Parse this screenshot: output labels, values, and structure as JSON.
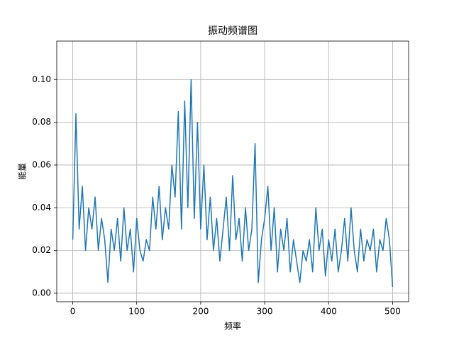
{
  "chart_data": {
    "type": "line",
    "title": "振动频谱图",
    "x_label": "频率",
    "y_label": "能量",
    "color": "#1f77b4",
    "grid": true,
    "xlim": [
      -25,
      525
    ],
    "xticks": [
      0,
      100,
      200,
      300,
      400,
      500
    ],
    "ylim": [
      -0.004,
      0.118
    ],
    "yticks": [
      {
        "value": 0,
        "label": "0.00"
      },
      {
        "value": 0.02,
        "label": "0.02"
      },
      {
        "value": 0.04,
        "label": "0.04"
      },
      {
        "value": 0.06,
        "label": "0.06"
      },
      {
        "value": 0.08,
        "label": "0.08"
      },
      {
        "value": 0.1,
        "label": "0.10"
      }
    ],
    "x": [
      0,
      5,
      10,
      15,
      20,
      25,
      30,
      35,
      40,
      45,
      50,
      55,
      60,
      65,
      70,
      75,
      80,
      85,
      90,
      95,
      100,
      105,
      110,
      115,
      120,
      125,
      130,
      135,
      140,
      145,
      150,
      155,
      160,
      165,
      170,
      175,
      180,
      185,
      190,
      195,
      200,
      205,
      210,
      215,
      220,
      225,
      230,
      235,
      240,
      245,
      250,
      255,
      260,
      265,
      270,
      275,
      280,
      285,
      290,
      295,
      300,
      305,
      310,
      315,
      320,
      325,
      330,
      335,
      340,
      345,
      350,
      355,
      360,
      365,
      370,
      375,
      380,
      385,
      390,
      395,
      400,
      405,
      410,
      415,
      420,
      425,
      430,
      435,
      440,
      445,
      450,
      455,
      460,
      465,
      470,
      475,
      480,
      485,
      490,
      495,
      500
    ],
    "values": [
      0.025,
      0.084,
      0.03,
      0.05,
      0.02,
      0.04,
      0.03,
      0.045,
      0.02,
      0.035,
      0.025,
      0.005,
      0.03,
      0.02,
      0.035,
      0.015,
      0.04,
      0.02,
      0.03,
      0.01,
      0.035,
      0.02,
      0.015,
      0.025,
      0.02,
      0.045,
      0.03,
      0.05,
      0.025,
      0.04,
      0.03,
      0.06,
      0.045,
      0.085,
      0.03,
      0.09,
      0.04,
      0.1,
      0.035,
      0.08,
      0.03,
      0.06,
      0.025,
      0.045,
      0.02,
      0.035,
      0.015,
      0.03,
      0.045,
      0.02,
      0.055,
      0.025,
      0.035,
      0.015,
      0.04,
      0.02,
      0.03,
      0.07,
      0.005,
      0.025,
      0.035,
      0.05,
      0.02,
      0.04,
      0.01,
      0.03,
      0.02,
      0.035,
      0.01,
      0.025,
      0.015,
      0.005,
      0.02,
      0.015,
      0.025,
      0.01,
      0.04,
      0.02,
      0.03,
      0.008,
      0.025,
      0.015,
      0.03,
      0.01,
      0.02,
      0.035,
      0.015,
      0.04,
      0.02,
      0.01,
      0.03,
      0.015,
      0.025,
      0.02,
      0.03,
      0.01,
      0.025,
      0.02,
      0.035,
      0.025,
      0.003
    ]
  }
}
